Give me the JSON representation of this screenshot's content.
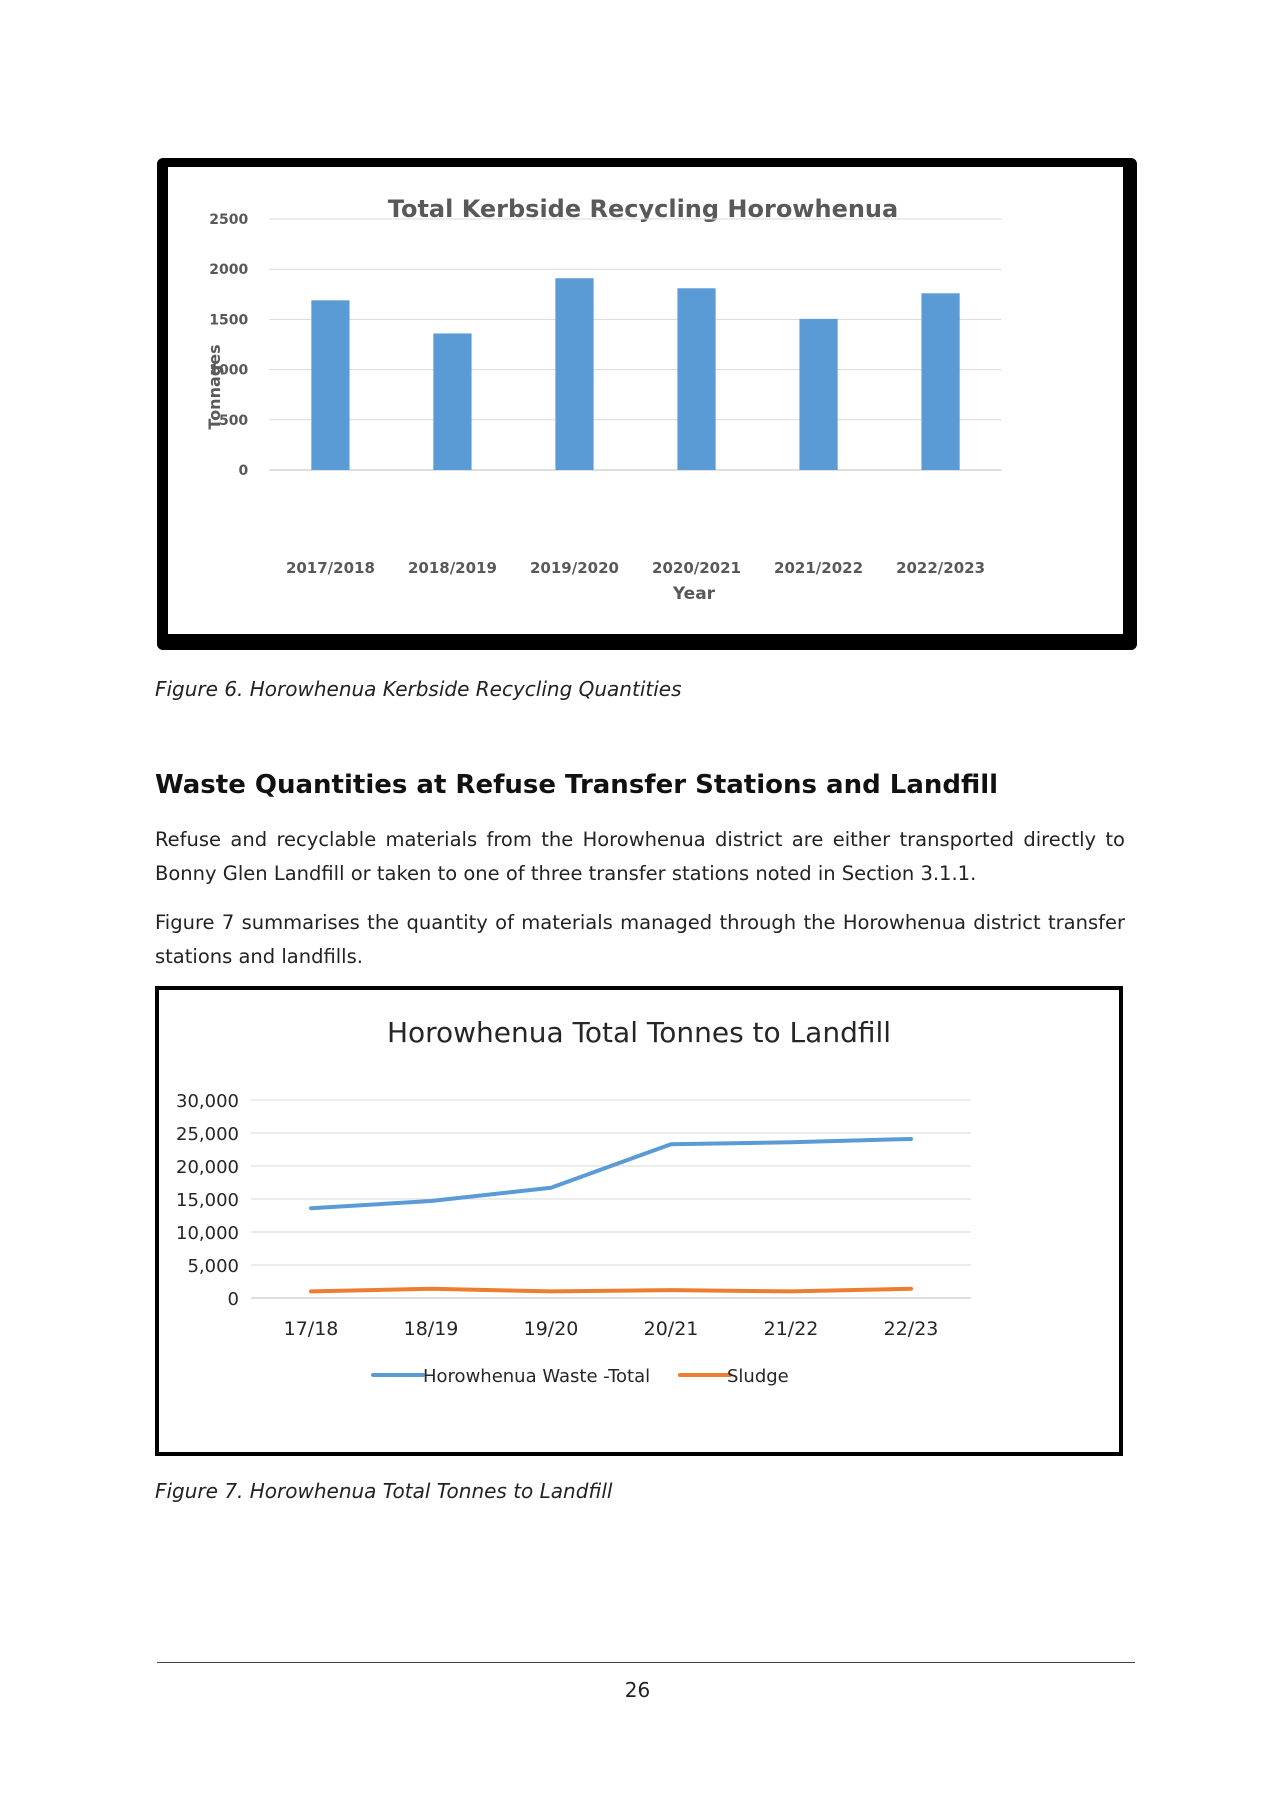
{
  "chart_data": [
    {
      "type": "bar",
      "title": "Total Kerbside Recycling Horowhenua",
      "xlabel": "Year",
      "ylabel": "Tonnages",
      "categories": [
        "2017/2018",
        "2018/2019",
        "2019/2020",
        "2020/2021",
        "2021/2022",
        "2022/2023"
      ],
      "values": [
        1690,
        1360,
        1910,
        1810,
        1505,
        1760
      ],
      "ylim": [
        0,
        2500
      ],
      "yticks": [
        0,
        500,
        1000,
        1500,
        2000,
        2500
      ],
      "ytick_labels": [
        "0",
        "500",
        "1000",
        "1500",
        "2000",
        "2500"
      ],
      "grid": true,
      "colors": {
        "bar": "#5b9bd5"
      }
    },
    {
      "type": "line",
      "title": "Horowhenua Total Tonnes to Landfill",
      "xlabel": "",
      "ylabel": "",
      "categories": [
        "17/18",
        "18/19",
        "19/20",
        "20/21",
        "21/22",
        "22/23"
      ],
      "series": [
        {
          "name": "Horowhenua Waste -Total",
          "values": [
            13600,
            14700,
            16700,
            23300,
            23600,
            24100
          ],
          "color": "#5b9bd5"
        },
        {
          "name": "Sludge",
          "values": [
            1000,
            1400,
            1000,
            1200,
            1000,
            1400
          ],
          "color": "#ed7d31"
        }
      ],
      "ylim": [
        0,
        30000
      ],
      "yticks": [
        0,
        5000,
        10000,
        15000,
        20000,
        25000,
        30000
      ],
      "ytick_labels": [
        "0",
        "5,000",
        "10,000",
        "15,000",
        "20,000",
        "25,000",
        "30,000"
      ],
      "grid": true,
      "legend": "bottom"
    }
  ],
  "captions": {
    "figure6": "Figure 6. Horowhenua Kerbside Recycling Quantities",
    "figure7": "Figure 7. Horowhenua Total Tonnes to Landfill"
  },
  "section": {
    "heading": "Waste Quantities at Refuse Transfer Stations and Landfill",
    "paragraph1": "Refuse and recyclable materials from the Horowhenua district are either transported directly to Bonny Glen Landfill or taken to one of three transfer stations noted in Section 3.1.1.",
    "paragraph2": "Figure 7 summarises the quantity of materials managed through the Horowhenua district transfer stations and landfills."
  },
  "footer": {
    "page_number": "26"
  }
}
